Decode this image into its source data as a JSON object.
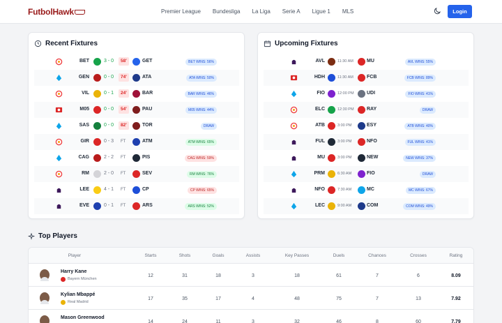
{
  "nav": {
    "logo": "FutbolHawk",
    "links": [
      "Premier League",
      "Bundesliga",
      "La Liga",
      "Serie A",
      "Ligue 1",
      "MLS"
    ],
    "login": "Login"
  },
  "recent": {
    "title": "Recent Fixtures",
    "rows": [
      {
        "league": "laliga",
        "home": "BET",
        "hc": "#16a34a",
        "score": "3 - 0",
        "state": "58'",
        "live": true,
        "away": "GET",
        "ac": "#2563eb",
        "badge": "BET WINS: 56%",
        "tone": "blue"
      },
      {
        "league": "seriea",
        "home": "GEN",
        "hc": "#b91c1c",
        "score": "0 - 0",
        "state": "74'",
        "live": true,
        "away": "ATA",
        "ac": "#1e3a8a",
        "badge": "ATA WINS: 50%",
        "tone": "blue"
      },
      {
        "league": "laliga",
        "home": "VIL",
        "hc": "#eab308",
        "score": "0 - 1",
        "state": "24'",
        "live": true,
        "away": "BAR",
        "ac": "#9f1239",
        "badge": "BAR WINS: 46%",
        "tone": "blue"
      },
      {
        "league": "bundesliga",
        "home": "M05",
        "hc": "#dc2626",
        "score": "0 - 0",
        "state": "54'",
        "live": true,
        "away": "PAU",
        "ac": "#7f1d1d",
        "badge": "M05 WINS: 44%",
        "tone": "blue"
      },
      {
        "league": "seriea",
        "home": "SAS",
        "hc": "#15803d",
        "score": "0 - 0",
        "state": "82'",
        "live": true,
        "away": "TOR",
        "ac": "#7f1d1d",
        "badge": "DRAW",
        "tone": "blue"
      },
      {
        "league": "laliga",
        "home": "GIR",
        "hc": "#dc2626",
        "score": "0 - 3",
        "state": "FT",
        "live": false,
        "away": "ATM",
        "ac": "#1e40af",
        "badge": "ATM WINS: 65%",
        "tone": "green"
      },
      {
        "league": "seriea",
        "home": "CAG",
        "hc": "#b91c1c",
        "score": "2 - 2",
        "state": "FT",
        "live": false,
        "away": "PIS",
        "ac": "#1f2937",
        "badge": "CAG WINS: 59%",
        "tone": "red"
      },
      {
        "league": "laliga",
        "home": "RM",
        "hc": "#d4d4d8",
        "score": "2 - 0",
        "state": "FT",
        "live": false,
        "away": "SEV",
        "ac": "#dc2626",
        "badge": "RM WINS: 76%",
        "tone": "green"
      },
      {
        "league": "premier",
        "home": "LEE",
        "hc": "#facc15",
        "score": "4 - 1",
        "state": "FT",
        "live": false,
        "away": "CP",
        "ac": "#1d4ed8",
        "badge": "CP WINS: 65%",
        "tone": "red"
      },
      {
        "league": "premier",
        "home": "EVE",
        "hc": "#1e40af",
        "score": "0 - 1",
        "state": "FT",
        "live": false,
        "away": "ARS",
        "ac": "#dc2626",
        "badge": "ARS WINS: 52%",
        "tone": "green"
      }
    ]
  },
  "upcoming": {
    "title": "Upcoming Fixtures",
    "rows": [
      {
        "league": "premier",
        "home": "AVL",
        "hc": "#7c2d12",
        "time": "11:30 AM",
        "away": "MU",
        "ac": "#dc2626",
        "badge": "AVL WINS: 55%"
      },
      {
        "league": "bundesliga",
        "home": "HDH",
        "hc": "#1d4ed8",
        "time": "11:30 AM",
        "away": "FCB",
        "ac": "#dc2626",
        "badge": "FCB WINS: 89%"
      },
      {
        "league": "seriea",
        "home": "FIO",
        "hc": "#7e22ce",
        "time": "12:00 PM",
        "away": "UDI",
        "ac": "#6b7280",
        "badge": "FIO WINS: 41%"
      },
      {
        "league": "laliga",
        "home": "ELC",
        "hc": "#16a34a",
        "time": "12:30 PM",
        "away": "RAY",
        "ac": "#dc2626",
        "badge": "DRAW"
      },
      {
        "league": "laliga",
        "home": "ATB",
        "hc": "#dc2626",
        "time": "3:00 PM",
        "away": "ESY",
        "ac": "#1e3a8a",
        "badge": "ATB WINS: 40%"
      },
      {
        "league": "premier",
        "home": "FUL",
        "hc": "#1f2937",
        "time": "3:00 PM",
        "away": "NFO",
        "ac": "#dc2626",
        "badge": "FUL WINS: 41%"
      },
      {
        "league": "premier",
        "home": "MU",
        "hc": "#dc2626",
        "time": "3:00 PM",
        "away": "NEW",
        "ac": "#1f2937",
        "badge": "NEW WINS: 37%"
      },
      {
        "league": "seriea",
        "home": "PRM",
        "hc": "#eab308",
        "time": "6:30 AM",
        "away": "FIO",
        "ac": "#7e22ce",
        "badge": "DRAW"
      },
      {
        "league": "premier",
        "home": "NFO",
        "hc": "#dc2626",
        "time": "7:30 AM",
        "away": "MC",
        "ac": "#0ea5e9",
        "badge": "MC WINS: 67%"
      },
      {
        "league": "seriea",
        "home": "LEC",
        "hc": "#eab308",
        "time": "9:00 AM",
        "away": "COM",
        "ac": "#1e3a8a",
        "badge": "COM WINS: 49%"
      }
    ]
  },
  "players": {
    "title": "Top Players",
    "headers": [
      "Player",
      "Starts",
      "Shots",
      "Goals",
      "Assists",
      "Key Passes",
      "Duels",
      "Chances",
      "Crosses",
      "Rating"
    ],
    "rows": [
      {
        "name": "Harry Kane",
        "club": "Bayern München",
        "clubColor": "#dc2626",
        "stats": [
          "12",
          "31",
          "18",
          "3",
          "18",
          "61",
          "7",
          "6"
        ],
        "rating": "8.09"
      },
      {
        "name": "Kylian Mbappé",
        "club": "Real Madrid",
        "clubColor": "#eab308",
        "stats": [
          "17",
          "35",
          "17",
          "4",
          "48",
          "75",
          "7",
          "13"
        ],
        "rating": "7.92"
      },
      {
        "name": "Mason Greenwood",
        "club": "",
        "clubColor": "#1d4ed8",
        "stats": [
          "14",
          "24",
          "11",
          "3",
          "32",
          "46",
          "8",
          "60"
        ],
        "rating": "7.79"
      }
    ]
  }
}
